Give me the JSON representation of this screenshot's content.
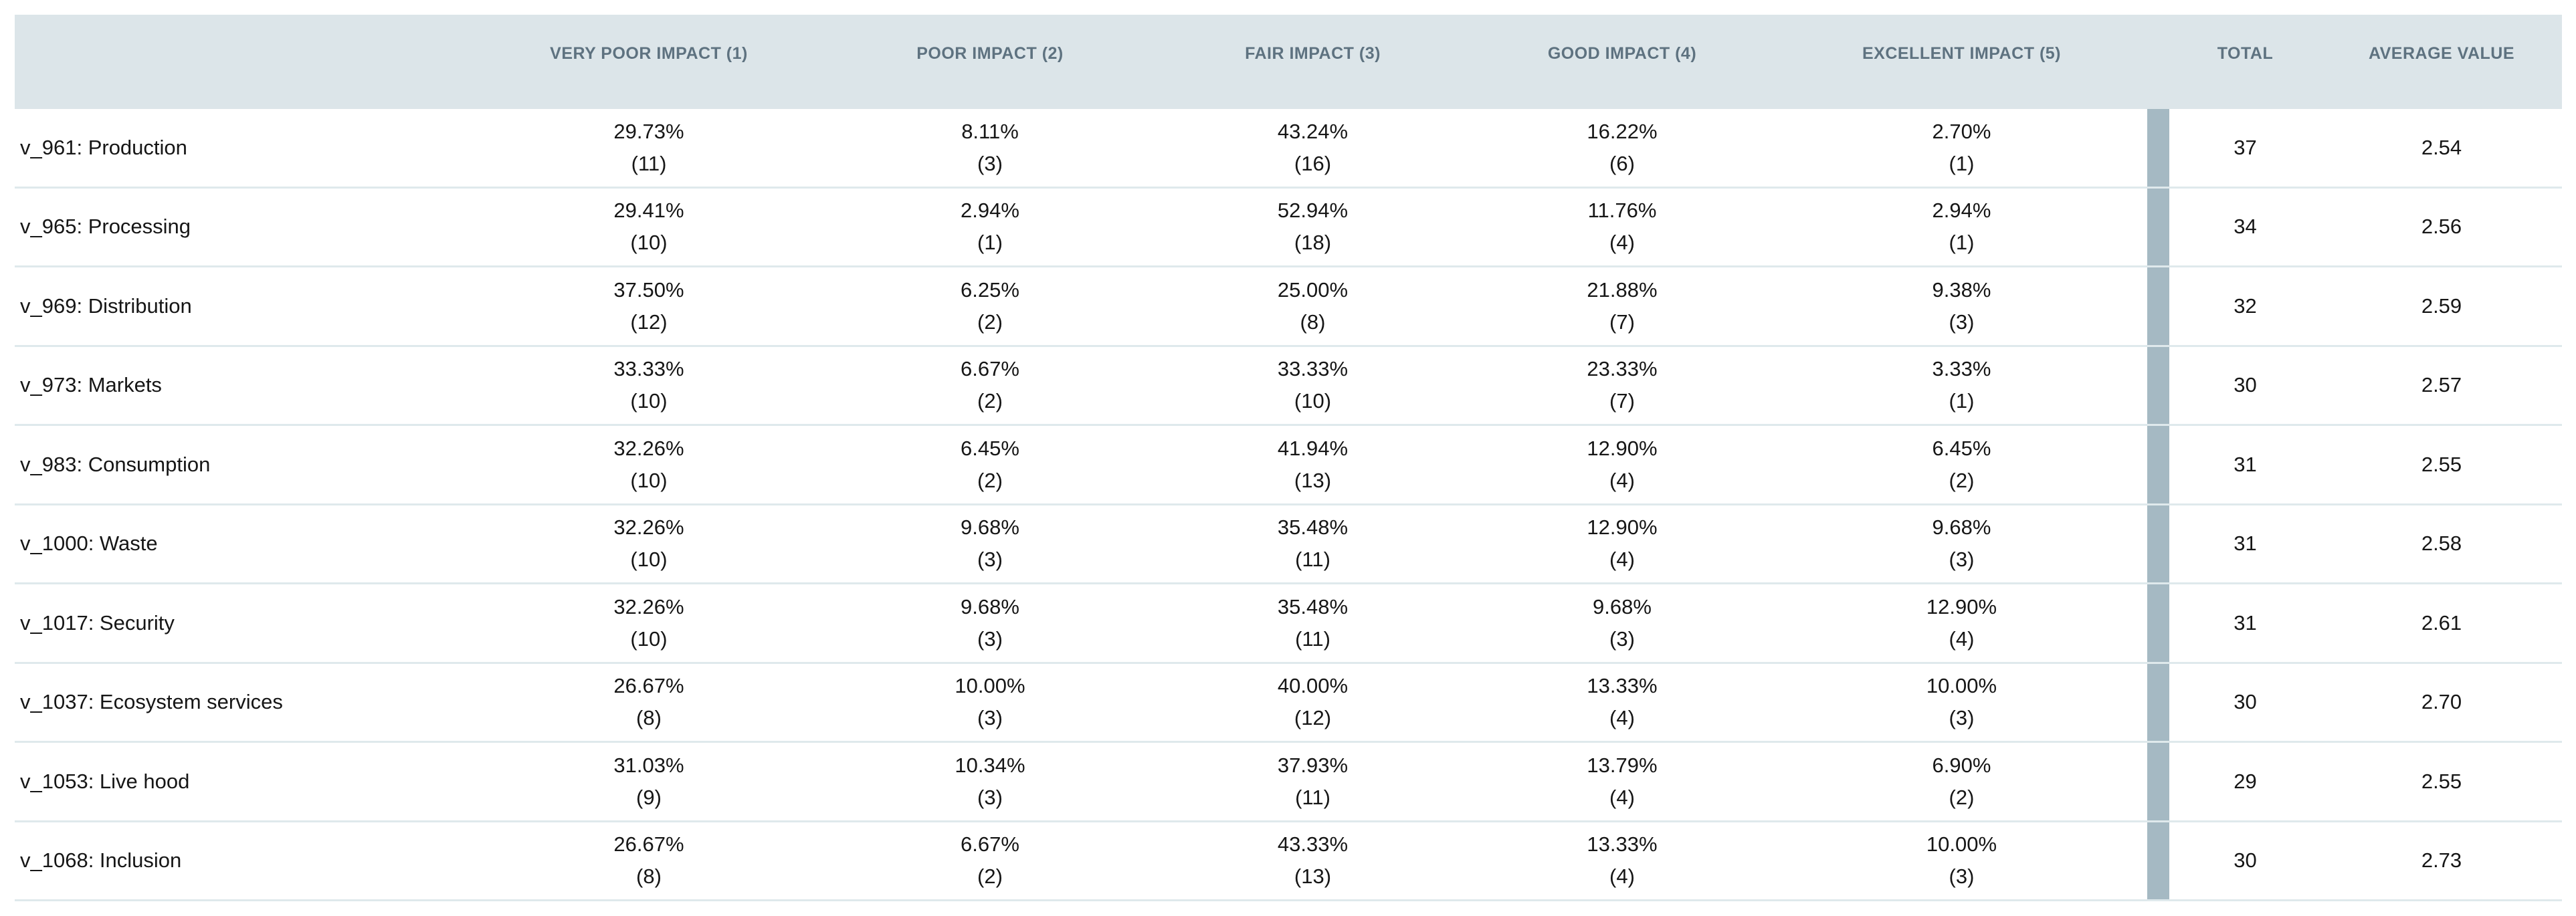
{
  "colors": {
    "header_background": "#dce5e9",
    "header_text": "#5e7280",
    "separator_bar": "#a5b9c3",
    "row_divider": "#dfe9ec",
    "body_text": "#161616"
  },
  "table": {
    "columns": {
      "row_header": "",
      "impact": [
        "VERY POOR IMPACT (1)",
        "POOR IMPACT (2)",
        "FAIR IMPACT (3)",
        "GOOD IMPACT (4)",
        "EXCELLENT IMPACT (5)"
      ],
      "total": "TOTAL",
      "average": "AVERAGE VALUE"
    },
    "rows": [
      {
        "label": "v_961: Production",
        "impacts": [
          {
            "pct": "29.73%",
            "count": "(11)"
          },
          {
            "pct": "8.11%",
            "count": "(3)"
          },
          {
            "pct": "43.24%",
            "count": "(16)"
          },
          {
            "pct": "16.22%",
            "count": "(6)"
          },
          {
            "pct": "2.70%",
            "count": "(1)"
          }
        ],
        "total": "37",
        "average": "2.54"
      },
      {
        "label": "v_965: Processing",
        "impacts": [
          {
            "pct": "29.41%",
            "count": "(10)"
          },
          {
            "pct": "2.94%",
            "count": "(1)"
          },
          {
            "pct": "52.94%",
            "count": "(18)"
          },
          {
            "pct": "11.76%",
            "count": "(4)"
          },
          {
            "pct": "2.94%",
            "count": "(1)"
          }
        ],
        "total": "34",
        "average": "2.56"
      },
      {
        "label": "v_969: Distribution",
        "impacts": [
          {
            "pct": "37.50%",
            "count": "(12)"
          },
          {
            "pct": "6.25%",
            "count": "(2)"
          },
          {
            "pct": "25.00%",
            "count": "(8)"
          },
          {
            "pct": "21.88%",
            "count": "(7)"
          },
          {
            "pct": "9.38%",
            "count": "(3)"
          }
        ],
        "total": "32",
        "average": "2.59"
      },
      {
        "label": "v_973: Markets",
        "impacts": [
          {
            "pct": "33.33%",
            "count": "(10)"
          },
          {
            "pct": "6.67%",
            "count": "(2)"
          },
          {
            "pct": "33.33%",
            "count": "(10)"
          },
          {
            "pct": "23.33%",
            "count": "(7)"
          },
          {
            "pct": "3.33%",
            "count": "(1)"
          }
        ],
        "total": "30",
        "average": "2.57"
      },
      {
        "label": "v_983: Consumption",
        "impacts": [
          {
            "pct": "32.26%",
            "count": "(10)"
          },
          {
            "pct": "6.45%",
            "count": "(2)"
          },
          {
            "pct": "41.94%",
            "count": "(13)"
          },
          {
            "pct": "12.90%",
            "count": "(4)"
          },
          {
            "pct": "6.45%",
            "count": "(2)"
          }
        ],
        "total": "31",
        "average": "2.55"
      },
      {
        "label": "v_1000: Waste",
        "impacts": [
          {
            "pct": "32.26%",
            "count": "(10)"
          },
          {
            "pct": "9.68%",
            "count": "(3)"
          },
          {
            "pct": "35.48%",
            "count": "(11)"
          },
          {
            "pct": "12.90%",
            "count": "(4)"
          },
          {
            "pct": "9.68%",
            "count": "(3)"
          }
        ],
        "total": "31",
        "average": "2.58"
      },
      {
        "label": "v_1017: Security",
        "impacts": [
          {
            "pct": "32.26%",
            "count": "(10)"
          },
          {
            "pct": "9.68%",
            "count": "(3)"
          },
          {
            "pct": "35.48%",
            "count": "(11)"
          },
          {
            "pct": "9.68%",
            "count": "(3)"
          },
          {
            "pct": "12.90%",
            "count": "(4)"
          }
        ],
        "total": "31",
        "average": "2.61"
      },
      {
        "label": "v_1037: Ecosystem services",
        "impacts": [
          {
            "pct": "26.67%",
            "count": "(8)"
          },
          {
            "pct": "10.00%",
            "count": "(3)"
          },
          {
            "pct": "40.00%",
            "count": "(12)"
          },
          {
            "pct": "13.33%",
            "count": "(4)"
          },
          {
            "pct": "10.00%",
            "count": "(3)"
          }
        ],
        "total": "30",
        "average": "2.70"
      },
      {
        "label": "v_1053: Live hood",
        "impacts": [
          {
            "pct": "31.03%",
            "count": "(9)"
          },
          {
            "pct": "10.34%",
            "count": "(3)"
          },
          {
            "pct": "37.93%",
            "count": "(11)"
          },
          {
            "pct": "13.79%",
            "count": "(4)"
          },
          {
            "pct": "6.90%",
            "count": "(2)"
          }
        ],
        "total": "29",
        "average": "2.55"
      },
      {
        "label": "v_1068: Inclusion",
        "impacts": [
          {
            "pct": "26.67%",
            "count": "(8)"
          },
          {
            "pct": "6.67%",
            "count": "(2)"
          },
          {
            "pct": "43.33%",
            "count": "(13)"
          },
          {
            "pct": "13.33%",
            "count": "(4)"
          },
          {
            "pct": "10.00%",
            "count": "(3)"
          }
        ],
        "total": "30",
        "average": "2.73"
      }
    ]
  }
}
